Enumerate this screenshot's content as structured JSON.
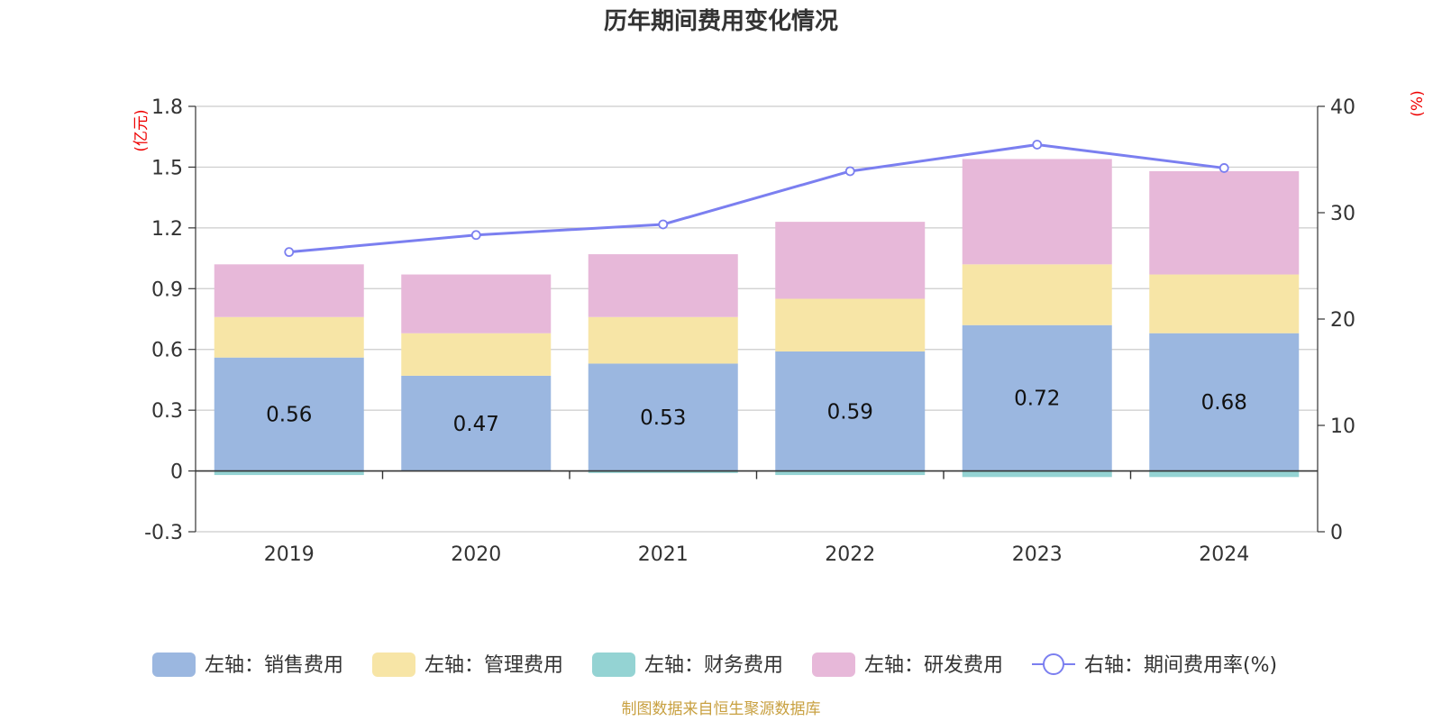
{
  "chart_data": {
    "type": "bar",
    "stacked": true,
    "title": "历年期间费用变化情况",
    "categories": [
      "2019",
      "2020",
      "2021",
      "2022",
      "2023",
      "2024"
    ],
    "y_left": {
      "unit": "(亿元)",
      "ylim": [
        -0.3,
        1.8
      ],
      "ticks": [
        "-0.3",
        "0",
        "0.3",
        "0.6",
        "0.9",
        "1.2",
        "1.5",
        "1.8"
      ]
    },
    "y_right": {
      "unit": "(%)",
      "ylim": [
        0,
        40
      ],
      "ticks": [
        "0",
        "10",
        "20",
        "30",
        "40"
      ]
    },
    "series": [
      {
        "name": "左轴：销售费用",
        "axis": "left",
        "color": "#9bb7e0",
        "values": [
          0.56,
          0.47,
          0.53,
          0.59,
          0.72,
          0.68
        ],
        "labels": [
          "0.56",
          "0.47",
          "0.53",
          "0.59",
          "0.72",
          "0.68"
        ]
      },
      {
        "name": "左轴：管理费用",
        "axis": "left",
        "color": "#f7e5a6",
        "values": [
          0.2,
          0.21,
          0.23,
          0.26,
          0.3,
          0.29
        ]
      },
      {
        "name": "左轴：财务费用",
        "axis": "left",
        "color": "#94d3d3",
        "values": [
          -0.02,
          0.0,
          -0.01,
          -0.02,
          -0.03,
          -0.03
        ]
      },
      {
        "name": "左轴：研发费用",
        "axis": "left",
        "color": "#e7b8d9",
        "values": [
          0.26,
          0.29,
          0.31,
          0.38,
          0.52,
          0.51
        ]
      },
      {
        "name": "右轴：期间费用率(%)",
        "axis": "right",
        "type": "line",
        "color": "#7b7ff0",
        "values": [
          26.3,
          27.9,
          28.9,
          33.9,
          36.4,
          34.2
        ]
      }
    ],
    "grid": true,
    "legend": "bottom"
  },
  "footer": {
    "source": "制图数据来自恒生聚源数据库"
  }
}
